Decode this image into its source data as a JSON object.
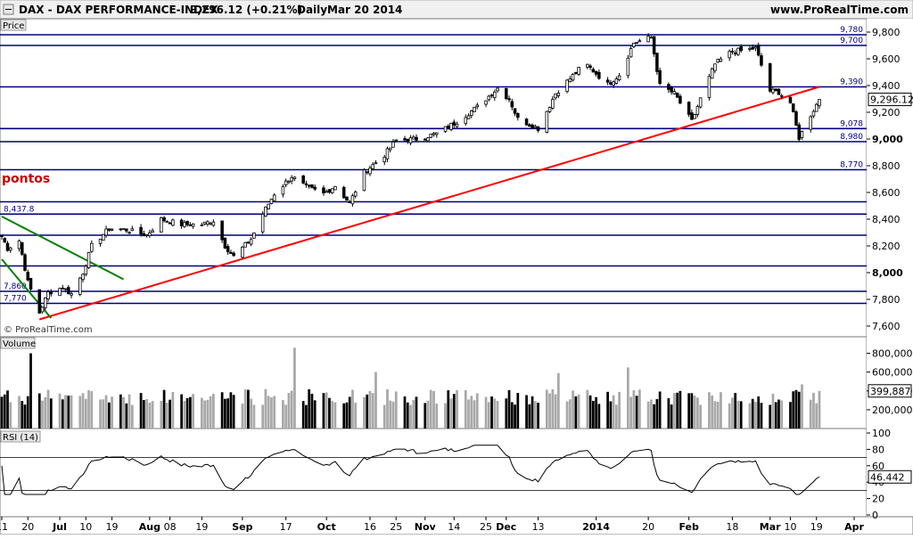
{
  "header": {
    "symbol": "DAX - DAX PERFORMANCE-INDEX",
    "price": "9,296.12 (+0.21%)",
    "period": "Daily",
    "date": "Mar 20 2014",
    "brand": "www.ProRealTime.com"
  },
  "colors": {
    "background": "#ffffff",
    "level_line": "#000080",
    "trend_up": "#ff0000",
    "trend_down": "#008000",
    "annotation": "#cc0000",
    "volume_up": "#a8a8a8",
    "volume_down": "#000000",
    "rsi_fill": "#c08080",
    "price_tag": "#ffffff"
  },
  "annotation": {
    "text": "pontos"
  },
  "watermark": "© ProRealTime.com",
  "chart_data": [
    {
      "type": "candlestick",
      "panel": "Price",
      "ylim": [
        7560,
        9840
      ],
      "yticks": [
        7600,
        7800,
        8000,
        8200,
        8400,
        8600,
        8800,
        9000,
        9200,
        9400,
        9600,
        9800
      ],
      "ytick_labels": [
        "7,600",
        "7,800",
        "8,000",
        "8,200",
        "8,400",
        "8,600",
        "8,800",
        "9,000",
        "9,200",
        "9,400",
        "9,600",
        "9,800"
      ],
      "last_value": 9296.12,
      "last_label": "9,296.12",
      "levels": [
        {
          "value": 9780,
          "label": "9,780"
        },
        {
          "value": 9700,
          "label": "9,700"
        },
        {
          "value": 9390,
          "label": "9,390"
        },
        {
          "value": 9078,
          "label": "9,078"
        },
        {
          "value": 8980,
          "label": "8,980"
        },
        {
          "value": 8770,
          "label": "8,770"
        },
        {
          "value": 8530,
          "label": ""
        },
        {
          "value": 8437.8,
          "label": "8,437.8"
        },
        {
          "value": 8280,
          "label": ""
        },
        {
          "value": 8050,
          "label": ""
        },
        {
          "value": 7860,
          "label": "7,860"
        },
        {
          "value": 7770,
          "label": "7,770"
        }
      ],
      "trendlines": [
        {
          "color": "trend_up",
          "from": [
            "2013-06-24",
            7650
          ],
          "to": [
            "2014-03-20",
            9390
          ]
        },
        {
          "color": "trend_down",
          "from": [
            "2013-06-11",
            8420
          ],
          "to": [
            "2013-07-23",
            7950
          ]
        },
        {
          "color": "trend_down",
          "from": [
            "2013-06-11",
            8100
          ],
          "to": [
            "2013-06-28",
            7660
          ]
        }
      ],
      "anchors": [
        {
          "date": "2013-06-11",
          "close": 8270
        },
        {
          "date": "2013-06-13",
          "close": 8180
        },
        {
          "date": "2013-06-17",
          "close": 8240
        },
        {
          "date": "2013-06-20",
          "close": 7930
        },
        {
          "date": "2013-06-24",
          "close": 7700
        },
        {
          "date": "2013-06-27",
          "close": 7850
        },
        {
          "date": "2013-07-02",
          "close": 7890
        },
        {
          "date": "2013-07-05",
          "close": 7840
        },
        {
          "date": "2013-07-09",
          "close": 8000
        },
        {
          "date": "2013-07-12",
          "close": 8200
        },
        {
          "date": "2013-07-18",
          "close": 8330
        },
        {
          "date": "2013-07-24",
          "close": 8320
        },
        {
          "date": "2013-07-31",
          "close": 8280
        },
        {
          "date": "2013-08-05",
          "close": 8400
        },
        {
          "date": "2013-08-12",
          "close": 8360
        },
        {
          "date": "2013-08-19",
          "close": 8360
        },
        {
          "date": "2013-08-23",
          "close": 8390
        },
        {
          "date": "2013-08-27",
          "close": 8200
        },
        {
          "date": "2013-08-30",
          "close": 8120
        },
        {
          "date": "2013-09-05",
          "close": 8250
        },
        {
          "date": "2013-09-09",
          "close": 8440
        },
        {
          "date": "2013-09-13",
          "close": 8590
        },
        {
          "date": "2013-09-19",
          "close": 8720
        },
        {
          "date": "2013-09-24",
          "close": 8640
        },
        {
          "date": "2013-09-30",
          "close": 8590
        },
        {
          "date": "2013-10-04",
          "close": 8650
        },
        {
          "date": "2013-10-09",
          "close": 8520
        },
        {
          "date": "2013-10-14",
          "close": 8750
        },
        {
          "date": "2013-10-21",
          "close": 8880
        },
        {
          "date": "2013-10-25",
          "close": 8990
        },
        {
          "date": "2013-11-01",
          "close": 9000
        },
        {
          "date": "2013-11-08",
          "close": 9040
        },
        {
          "date": "2013-11-15",
          "close": 9130
        },
        {
          "date": "2013-11-22",
          "close": 9240
        },
        {
          "date": "2013-11-29",
          "close": 9380
        },
        {
          "date": "2013-12-03",
          "close": 9300
        },
        {
          "date": "2013-12-06",
          "close": 9150
        },
        {
          "date": "2013-12-13",
          "close": 9080
        },
        {
          "date": "2013-12-19",
          "close": 9340
        },
        {
          "date": "2013-12-27",
          "close": 9520
        },
        {
          "date": "2013-12-30",
          "close": 9550
        },
        {
          "date": "2014-01-06",
          "close": 9410
        },
        {
          "date": "2014-01-10",
          "close": 9480
        },
        {
          "date": "2014-01-15",
          "close": 9720
        },
        {
          "date": "2014-01-21",
          "close": 9760
        },
        {
          "date": "2014-01-24",
          "close": 9400
        },
        {
          "date": "2014-01-29",
          "close": 9340
        },
        {
          "date": "2014-02-04",
          "close": 9130
        },
        {
          "date": "2014-02-07",
          "close": 9300
        },
        {
          "date": "2014-02-12",
          "close": 9560
        },
        {
          "date": "2014-02-18",
          "close": 9660
        },
        {
          "date": "2014-02-21",
          "close": 9660
        },
        {
          "date": "2014-02-26",
          "close": 9680
        },
        {
          "date": "2014-03-03",
          "close": 9360
        },
        {
          "date": "2014-03-06",
          "close": 9350
        },
        {
          "date": "2014-03-10",
          "close": 9270
        },
        {
          "date": "2014-03-13",
          "close": 9010
        },
        {
          "date": "2014-03-14",
          "close": 9050
        },
        {
          "date": "2014-03-17",
          "close": 9180
        },
        {
          "date": "2014-03-20",
          "close": 9296
        }
      ]
    },
    {
      "type": "bar",
      "panel": "Volume",
      "ylim": [
        0,
        900000
      ],
      "yticks": [
        200000,
        400000,
        600000,
        800000
      ],
      "ytick_labels": [
        "200,000",
        "400,000",
        "600,000",
        "800,000"
      ],
      "last_value": 399887,
      "last_label": "399,887",
      "spikes": [
        {
          "date": "2013-06-21",
          "value": 800000
        },
        {
          "date": "2013-09-20",
          "value": 860000
        },
        {
          "date": "2013-10-18",
          "value": 600000
        },
        {
          "date": "2013-12-20",
          "value": 590000
        },
        {
          "date": "2014-01-13",
          "value": 650000
        },
        {
          "date": "2014-03-14",
          "value": 470000
        }
      ]
    },
    {
      "type": "line",
      "panel": "RSI (14)",
      "ylim": [
        0,
        100
      ],
      "yticks": [
        0,
        20,
        40,
        60,
        80,
        100
      ],
      "ytick_labels": [
        "0",
        "20",
        "40",
        "60",
        "80",
        "100"
      ],
      "bands": [
        30,
        70
      ],
      "last_value": 46.442,
      "last_label": "46.442"
    }
  ],
  "x_axis": {
    "start": "2013-06-11",
    "end": "2014-04-01",
    "ticks": [
      {
        "date": "2013-06-11",
        "label": "11"
      },
      {
        "date": "2013-06-20",
        "label": "20"
      },
      {
        "date": "2013-07-01",
        "label": "Jul"
      },
      {
        "date": "2013-07-10",
        "label": "10"
      },
      {
        "date": "2013-07-19",
        "label": "19"
      },
      {
        "date": "2013-08-01",
        "label": "Aug"
      },
      {
        "date": "2013-08-08",
        "label": "08"
      },
      {
        "date": "2013-08-19",
        "label": "19"
      },
      {
        "date": "2013-09-02",
        "label": "Sep"
      },
      {
        "date": "2013-09-17",
        "label": "17"
      },
      {
        "date": "2013-10-01",
        "label": "Oct"
      },
      {
        "date": "2013-10-16",
        "label": "16"
      },
      {
        "date": "2013-10-25",
        "label": "25"
      },
      {
        "date": "2013-11-04",
        "label": "Nov"
      },
      {
        "date": "2013-11-14",
        "label": "14"
      },
      {
        "date": "2013-11-25",
        "label": "25"
      },
      {
        "date": "2013-12-02",
        "label": "Dec"
      },
      {
        "date": "2013-12-13",
        "label": "13"
      },
      {
        "date": "2014-01-02",
        "label": "2014"
      },
      {
        "date": "2014-01-20",
        "label": "20"
      },
      {
        "date": "2014-02-03",
        "label": "Feb"
      },
      {
        "date": "2014-02-18",
        "label": "18"
      },
      {
        "date": "2014-03-03",
        "label": "Mar"
      },
      {
        "date": "2014-03-10",
        "label": "10"
      },
      {
        "date": "2014-03-19",
        "label": "19"
      },
      {
        "date": "2014-04-01",
        "label": "Apr"
      }
    ]
  }
}
